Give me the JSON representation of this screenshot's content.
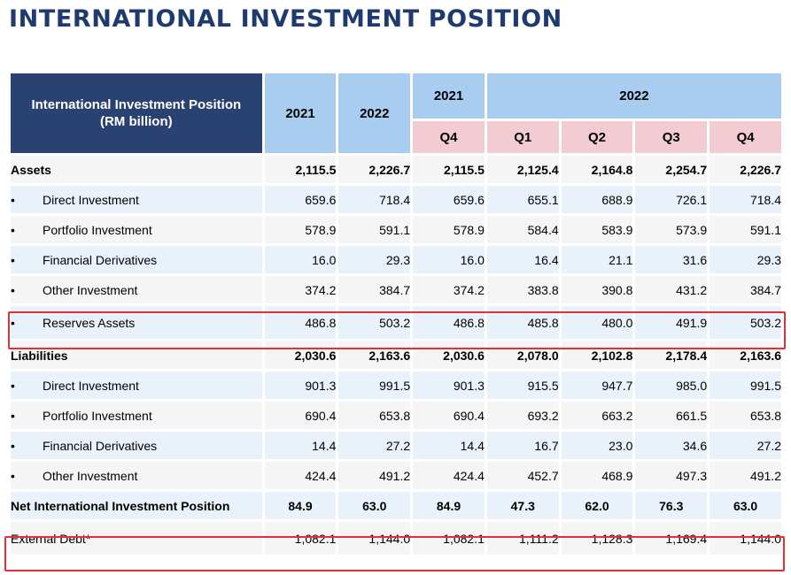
{
  "page": {
    "title": "INTERNATIONAL INVESTMENT POSITION"
  },
  "header": {
    "label_line1": "International Investment Position",
    "label_line2": "(RM billion)",
    "col_2021": "2021",
    "col_2022": "2022",
    "group_2021": "2021",
    "group_2022": "2022",
    "q_2021": [
      "Q4"
    ],
    "q_2022": [
      "Q1",
      "Q2",
      "Q3",
      "Q4"
    ]
  },
  "bullet": "•",
  "rows": [
    {
      "label": "Assets",
      "bold": true,
      "bullet": false,
      "bg": "w",
      "values": [
        "2,115.5",
        "2,226.7",
        "2,115.5",
        "2,125.4",
        "2,164.8",
        "2,254.7",
        "2,226.7"
      ]
    },
    {
      "label": "Direct Investment",
      "bold": false,
      "bullet": true,
      "bg": "b",
      "values": [
        "659.6",
        "718.4",
        "659.6",
        "655.1",
        "688.9",
        "726.1",
        "718.4"
      ]
    },
    {
      "label": "Portfolio Investment",
      "bold": false,
      "bullet": true,
      "bg": "w",
      "values": [
        "578.9",
        "591.1",
        "578.9",
        "584.4",
        "583.9",
        "573.9",
        "591.1"
      ]
    },
    {
      "label": "Financial Derivatives",
      "bold": false,
      "bullet": true,
      "bg": "b",
      "values": [
        "16.0",
        "29.3",
        "16.0",
        "16.4",
        "21.1",
        "31.6",
        "29.3"
      ]
    },
    {
      "label": "Other Investment",
      "bold": false,
      "bullet": true,
      "bg": "w",
      "values": [
        "374.2",
        "384.7",
        "374.2",
        "383.8",
        "390.8",
        "431.2",
        "384.7"
      ]
    },
    {
      "label": "Reserves Assets",
      "bold": false,
      "bullet": true,
      "bg": "b",
      "tall": true,
      "values": [
        "486.8",
        "503.2",
        "486.8",
        "485.8",
        "480.0",
        "491.9",
        "503.2"
      ]
    },
    {
      "label": "Liabilities",
      "bold": true,
      "bullet": false,
      "bg": "w",
      "values": [
        "2,030.6",
        "2,163.6",
        "2,030.6",
        "2,078.0",
        "2,102.8",
        "2,178.4",
        "2,163.6"
      ]
    },
    {
      "label": "Direct Investment",
      "bold": false,
      "bullet": true,
      "bg": "b",
      "values": [
        "901.3",
        "991.5",
        "901.3",
        "915.5",
        "947.7",
        "985.0",
        "991.5"
      ]
    },
    {
      "label": "Portfolio Investment",
      "bold": false,
      "bullet": true,
      "bg": "w",
      "values": [
        "690.4",
        "653.8",
        "690.4",
        "693.2",
        "663.2",
        "661.5",
        "653.8"
      ]
    },
    {
      "label": "Financial Derivatives",
      "bold": false,
      "bullet": true,
      "bg": "b",
      "values": [
        "14.4",
        "27.2",
        "14.4",
        "16.7",
        "23.0",
        "34.6",
        "27.2"
      ]
    },
    {
      "label": "Other Investment",
      "bold": false,
      "bullet": true,
      "bg": "w",
      "values": [
        "424.4",
        "491.2",
        "424.4",
        "452.7",
        "468.9",
        "497.3",
        "491.2"
      ]
    },
    {
      "label": "Net International Investment Position",
      "bold": true,
      "bullet": false,
      "bg": "b",
      "center": true,
      "values": [
        "84.9",
        "63.0",
        "84.9",
        "47.3",
        "62.0",
        "76.3",
        "63.0"
      ]
    },
    {
      "label": "External Debt*",
      "bold": false,
      "bullet": false,
      "bg": "w",
      "tall": true,
      "values": [
        "1,082.1",
        "1,144.0",
        "1,082.1",
        "1,111.2",
        "1,128.3",
        "1,169.4",
        "1,144.0"
      ]
    }
  ],
  "colors": {
    "title": "#1f3a6e",
    "header_dark": "#2a4272",
    "header_year": "#a8cdf0",
    "header_quarter": "#f3cbd3",
    "highlight": "#e0303a"
  }
}
